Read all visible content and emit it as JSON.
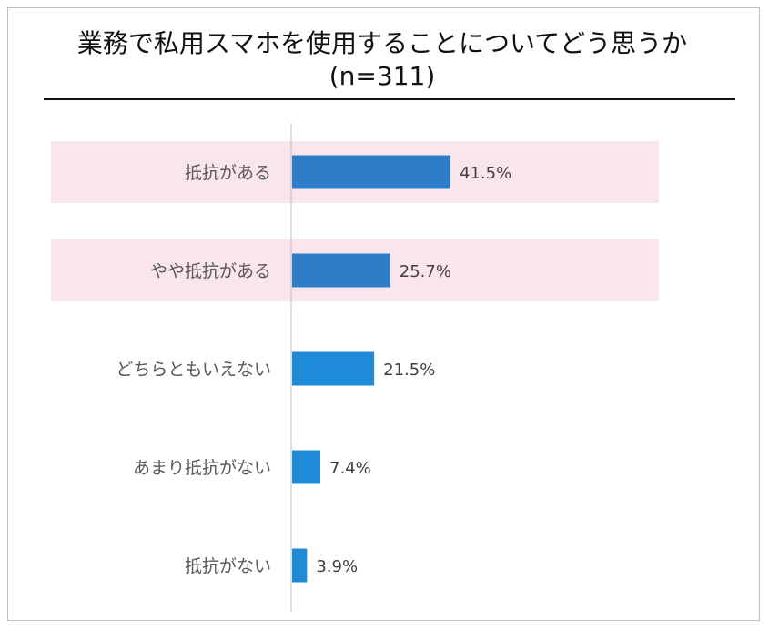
{
  "title": {
    "line1": "業務で私用スマホを使用することについてどう思うか",
    "line2": "(n=311)"
  },
  "colors": {
    "highlight_band": "#f9e5ec",
    "bar_dark": "#2e7dc8",
    "bar_light": "#1f8ad8",
    "axis": "#bfbfbf"
  },
  "chart_data": {
    "type": "bar",
    "orientation": "horizontal",
    "categories": [
      "抵抗がある",
      "やや抵抗がある",
      "どちらともいえない",
      "あまり抵抗がない",
      "抵抗がない"
    ],
    "values": [
      41.5,
      25.7,
      21.5,
      7.4,
      3.9
    ],
    "value_labels": [
      "41.5%",
      "25.7%",
      "21.5%",
      "7.4%",
      "3.9%"
    ],
    "highlighted": [
      true,
      true,
      false,
      false,
      false
    ],
    "xlim": [
      0,
      100
    ],
    "grid": false,
    "legend": "none"
  }
}
